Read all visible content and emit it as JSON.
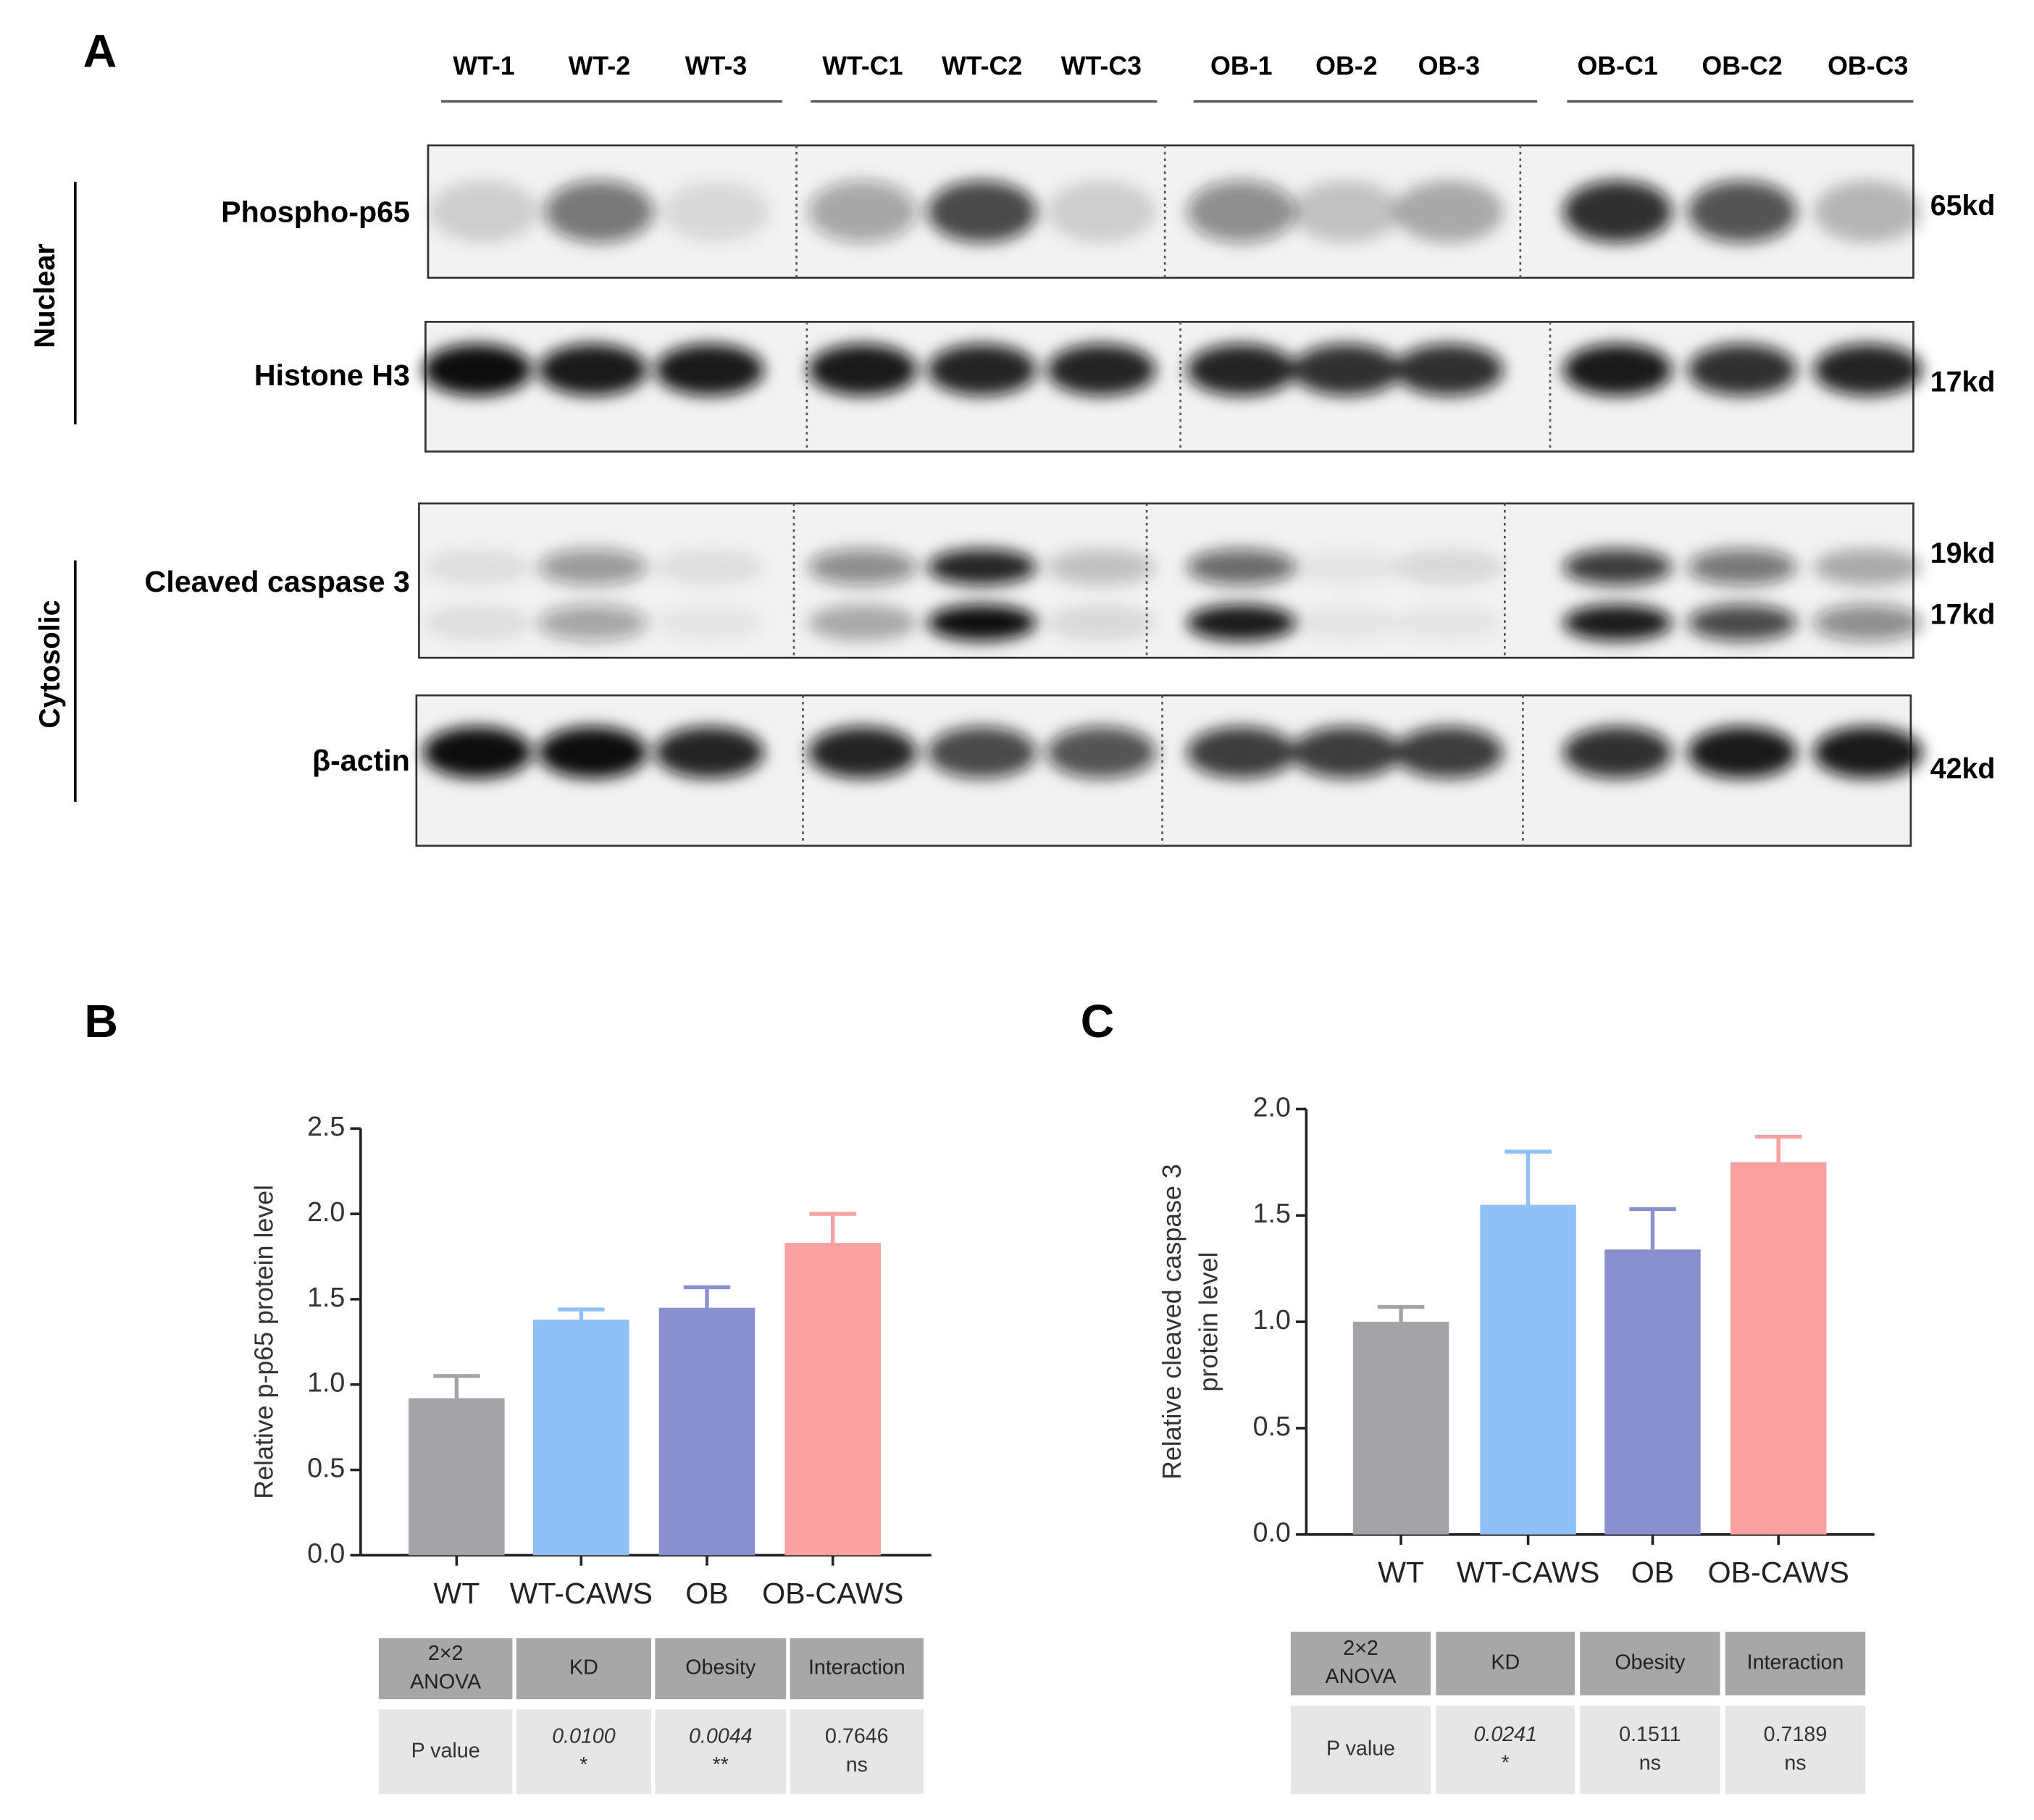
{
  "blot": {
    "panel": "A",
    "lanes": [
      "WT-1",
      "WT-2",
      "WT-3",
      "WT-C1",
      "WT-C2",
      "WT-C3",
      "OB-1",
      "OB-2",
      "OB-3",
      "OB-C1",
      "OB-C2",
      "OB-C3"
    ],
    "sections": [
      "Nuclear",
      "Cytosolic"
    ],
    "rows": [
      {
        "label": "Phospho-p65",
        "sizes": [
          "65kd"
        ]
      },
      {
        "label": "Histone H3",
        "sizes": [
          "17kd"
        ]
      },
      {
        "label": "Cleaved caspase 3",
        "sizes": [
          "19kd",
          "17kd"
        ]
      },
      {
        "label": "β-actin",
        "sizes": [
          "42kd"
        ]
      }
    ]
  },
  "chart_data": [
    {
      "type": "bar",
      "panel": "B",
      "y_label": [
        "Relative p-p65 protein level"
      ],
      "categories": [
        "WT",
        "WT-CAWS",
        "OB",
        "OB-CAWS"
      ],
      "values": [
        0.92,
        1.38,
        1.45,
        1.83
      ],
      "errors": [
        0.13,
        0.06,
        0.12,
        0.17
      ],
      "colors": [
        "#a3a3a8",
        "#8fc1f7",
        "#8a8fd0",
        "#f9a0a0"
      ],
      "ylim": [
        0,
        2.5
      ],
      "yticks": [
        {
          "value": 0,
          "label": "0.0"
        },
        0.5,
        {
          "value": 1,
          "label": "1.0"
        },
        1.5,
        {
          "value": 2,
          "label": "2.0"
        },
        2.5
      ],
      "anova_table": {
        "header": [
          [
            "2×2",
            "ANOVA"
          ],
          [
            "KD"
          ],
          [
            "Obesity"
          ],
          [
            "Interaction"
          ]
        ],
        "row": [
          [
            "P value"
          ],
          [
            "0.0100",
            "*"
          ],
          [
            "0.0044",
            "**"
          ],
          [
            "0.7646",
            "ns"
          ]
        ]
      }
    },
    {
      "type": "bar",
      "panel": "C",
      "y_label": [
        "Relative cleaved caspase 3",
        "protein level"
      ],
      "categories": [
        "WT",
        "WT-CAWS",
        "OB",
        "OB-CAWS"
      ],
      "values": [
        1.0,
        1.55,
        1.34,
        1.75
      ],
      "errors": [
        0.07,
        0.25,
        0.19,
        0.12
      ],
      "colors": [
        "#a3a3a8",
        "#8fc1f7",
        "#8a8fd0",
        "#f9a0a0"
      ],
      "ylim": [
        0,
        2
      ],
      "yticks": [
        {
          "value": 0,
          "label": "0.0"
        },
        0.5,
        {
          "value": 1,
          "label": "1.0"
        },
        1.5,
        {
          "value": 2,
          "label": "2.0"
        }
      ],
      "anova_table": {
        "header": [
          [
            "2×2",
            "ANOVA"
          ],
          [
            "KD"
          ],
          [
            "Obesity"
          ],
          [
            "Interaction"
          ]
        ],
        "row": [
          [
            "P value"
          ],
          [
            "0.0241",
            "*"
          ],
          [
            "0.1511",
            "ns"
          ],
          [
            "0.7189",
            "ns"
          ]
        ]
      }
    }
  ]
}
